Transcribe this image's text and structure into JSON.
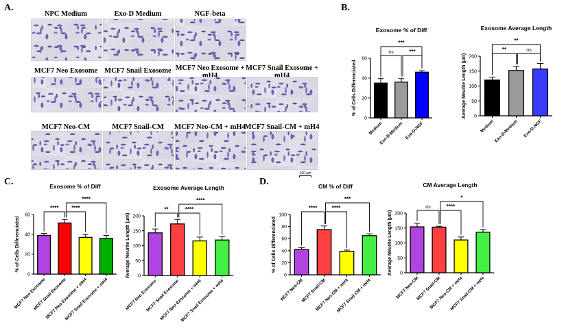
{
  "panels": {
    "a": "A.",
    "b": "B.",
    "c": "C.",
    "d": "D."
  },
  "micrographs": [
    "NPC Medium",
    "Exo-D Medium",
    "NGF-beta",
    "MCF7 Neo Exosome",
    "MCF7 Snail Exosome",
    "MCF7 Neo Exosome + mH4",
    "MCF7 Snail Exosome + mH4",
    "MCF7 Neo-CM",
    "MCF7 Snail-CM",
    "MCF7 Neo-CM + mH4",
    "MCF7 Snail-CM + mH4"
  ],
  "scale_bar": "100 µm",
  "chart_data": [
    {
      "id": "B1",
      "type": "bar",
      "title": "Exosome % of Diff",
      "ylabel": "% of Cells Differenciated",
      "ylim": [
        0,
        60
      ],
      "yticks": [
        0,
        20,
        40,
        60
      ],
      "categories": [
        "Medium",
        "Exo-D-Medium",
        "Exo-D-NGF"
      ],
      "values": [
        35,
        36,
        46
      ],
      "errors": [
        4.5,
        3.5,
        1.5
      ],
      "colors": [
        "#000000",
        "#9a9a9a",
        "#0000ff"
      ],
      "significance": [
        {
          "a": 0,
          "b": 1,
          "label": "ns"
        },
        {
          "a": 1,
          "b": 2,
          "label": "***"
        },
        {
          "a": 0,
          "b": 2,
          "label": "***"
        }
      ]
    },
    {
      "id": "B2",
      "type": "bar",
      "title": "Exosome Average Length",
      "ylabel": "Average Neurite Length (µm)",
      "ylim": [
        0,
        200
      ],
      "yticks": [
        0,
        50,
        100,
        150,
        200
      ],
      "categories": [
        "Medium",
        "Exo-D-Medium",
        "Exo-D-NGF"
      ],
      "values": [
        120,
        152,
        157
      ],
      "errors": [
        10,
        14,
        19
      ],
      "colors": [
        "#000000",
        "#9a9a9a",
        "#3b3bff"
      ],
      "significance": [
        {
          "a": 0,
          "b": 1,
          "label": "**"
        },
        {
          "a": 1,
          "b": 2,
          "label": "ns"
        },
        {
          "a": 0,
          "b": 2,
          "label": "**"
        }
      ]
    },
    {
      "id": "C1",
      "type": "bar",
      "title": "Exosome % of Diff",
      "ylabel": "% of Cells Differenciated",
      "ylim": [
        0,
        60
      ],
      "yticks": [
        0,
        20,
        40,
        60
      ],
      "categories": [
        "MCF7 Neo Exosome",
        "MCF7 Snail Exosome",
        "MCF7 Neo Exosome + mH4",
        "MCF7 Snail Exosome + mH4"
      ],
      "values": [
        39,
        51.5,
        37,
        36
      ],
      "errors": [
        2,
        3.5,
        3,
        3
      ],
      "colors": [
        "#b044e0",
        "#ff0000",
        "#ffff00",
        "#00b000"
      ],
      "significance": [
        {
          "a": 0,
          "b": 1,
          "label": "****"
        },
        {
          "a": 1,
          "b": 2,
          "label": "****"
        },
        {
          "a": 1,
          "b": 3,
          "label": "****"
        }
      ]
    },
    {
      "id": "C2",
      "type": "bar",
      "title": "Exosome Average Length",
      "ylabel": "Average Neurite Length (µm)",
      "ylim": [
        0,
        200
      ],
      "yticks": [
        0,
        50,
        100,
        150,
        200
      ],
      "categories": [
        "MCF7 Neo Exosome",
        "MCF7 Snail Exosome",
        "MCF7 Neo Exosome + mH4",
        "MCF7 Snail Exosome + mH4"
      ],
      "values": [
        143,
        173,
        116,
        119
      ],
      "errors": [
        13,
        15,
        13,
        12
      ],
      "colors": [
        "#b044e0",
        "#ff4040",
        "#ffff00",
        "#44ee44"
      ],
      "significance": [
        {
          "a": 0,
          "b": 1,
          "label": "**"
        },
        {
          "a": 1,
          "b": 2,
          "label": "****"
        },
        {
          "a": 1,
          "b": 3,
          "label": "****"
        }
      ]
    },
    {
      "id": "D1",
      "type": "bar",
      "title": "CM % of Diff",
      "ylabel": "% of Cells Differenciated",
      "ylim": [
        0,
        100
      ],
      "yticks": [
        0,
        20,
        40,
        60,
        80,
        100
      ],
      "categories": [
        "MCF7 Neo-CM",
        "MCF7 Snail-CM",
        "MCF7 Neo-CM + mH4",
        "MCF7 Snail-CM + mH4"
      ],
      "values": [
        42,
        75,
        39,
        65
      ],
      "errors": [
        3,
        6,
        2,
        3
      ],
      "colors": [
        "#b044e0",
        "#ff4040",
        "#ffff00",
        "#44ee44"
      ],
      "significance": [
        {
          "a": 0,
          "b": 1,
          "label": "****"
        },
        {
          "a": 1,
          "b": 2,
          "label": "****"
        },
        {
          "a": 1,
          "b": 3,
          "label": "***"
        }
      ]
    },
    {
      "id": "D2",
      "type": "bar",
      "title": "CM Average Length",
      "ylabel": "Average Neurite Length (µm)",
      "ylim": [
        0,
        200
      ],
      "yticks": [
        0,
        50,
        100,
        150,
        200
      ],
      "categories": [
        "MCF7 Neo-CM",
        "MCF7 Snail-CM",
        "MCF7 Neo-CM + mH4",
        "MCF7 Snail-CM + mH4"
      ],
      "values": [
        154,
        153,
        110,
        136
      ],
      "errors": [
        12,
        3,
        10,
        9
      ],
      "colors": [
        "#b044e0",
        "#ff4040",
        "#ffff00",
        "#44ee44"
      ],
      "significance": [
        {
          "a": 0,
          "b": 1,
          "label": "ns"
        },
        {
          "a": 1,
          "b": 2,
          "label": "****"
        },
        {
          "a": 1,
          "b": 3,
          "label": "*"
        }
      ]
    }
  ]
}
